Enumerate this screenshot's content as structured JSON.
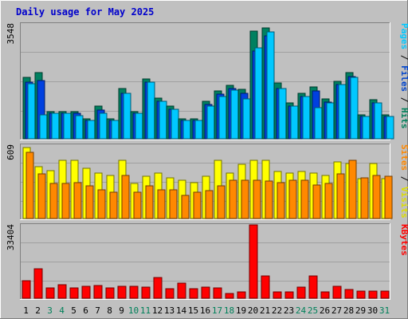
{
  "chart_data": {
    "type": "bar",
    "title": "Daily usage for May 2025",
    "days": [
      "1",
      "2",
      "3",
      "4",
      "5",
      "6",
      "7",
      "8",
      "9",
      "10",
      "11",
      "12",
      "13",
      "14",
      "15",
      "16",
      "17",
      "18",
      "19",
      "20",
      "21",
      "22",
      "23",
      "24",
      "25",
      "26",
      "27",
      "28",
      "29",
      "30",
      "31"
    ],
    "weekend_days": [
      "3",
      "4",
      "10",
      "11",
      "17",
      "18",
      "24",
      "25",
      "31"
    ],
    "panels": [
      {
        "id": "hits",
        "max_label": "3548",
        "ymax": 3548,
        "right_label_parts": [
          {
            "text": "Pages",
            "color": "#00c8ff"
          },
          {
            "text": " / ",
            "color": "#000000"
          },
          {
            "text": "Files",
            "color": "#0044cc"
          },
          {
            "text": " / ",
            "color": "#000000"
          },
          {
            "text": "Hits",
            "color": "#00805a"
          }
        ],
        "series": [
          {
            "name": "Hits",
            "color": "#008060",
            "values": [
              1900,
              2050,
              850,
              850,
              850,
              620,
              1000,
              620,
              1560,
              850,
              1850,
              1250,
              1000,
              620,
              620,
              1160,
              1470,
              1650,
              1520,
              3320,
              3430,
              1720,
              1110,
              1400,
              1590,
              1240,
              1770,
              2050,
              730,
              1200,
              750
            ]
          },
          {
            "name": "Files",
            "color": "#0040e0",
            "values": [
              1750,
              1800,
              790,
              790,
              790,
              560,
              890,
              560,
              1400,
              790,
              1750,
              1150,
              920,
              560,
              560,
              1050,
              1370,
              1560,
              1400,
              2720,
              3190,
              1560,
              1020,
              1310,
              1490,
              1130,
              1680,
              1910,
              700,
              1100,
              700
            ]
          },
          {
            "name": "Pages",
            "color": "#00c8ff",
            "values": [
              1700,
              750,
              780,
              780,
              720,
              560,
              780,
              560,
              1400,
              780,
              1750,
              1150,
              920,
              560,
              560,
              1000,
              1300,
              1500,
              1230,
              2800,
              3300,
              1550,
              1000,
              1300,
              950,
              1100,
              1680,
              1900,
              700,
              1100,
              700
            ]
          }
        ]
      },
      {
        "id": "visits",
        "max_label": "609",
        "ymax": 609,
        "right_label_parts": [
          {
            "text": "Sites",
            "color": "#ff8800"
          },
          {
            "text": " / ",
            "color": "#000000"
          },
          {
            "text": "Visits",
            "color": "#dddd00"
          }
        ],
        "series": [
          {
            "name": "Visits",
            "color": "#ffff00",
            "values": [
              590,
              430,
              400,
              480,
              480,
              420,
              380,
              360,
              480,
              290,
              350,
              380,
              340,
              315,
              300,
              350,
              480,
              380,
              450,
              480,
              480,
              390,
              380,
              390,
              380,
              360,
              470,
              460,
              330,
              460,
              330
            ]
          },
          {
            "name": "Sites",
            "color": "#ff8800",
            "values": [
              550,
              370,
              290,
              290,
              300,
              270,
              240,
              220,
              360,
              220,
              270,
              240,
              240,
              190,
              220,
              230,
              270,
              320,
              320,
              320,
              310,
              300,
              320,
              320,
              280,
              290,
              370,
              480,
              340,
              360,
              350
            ]
          }
        ]
      },
      {
        "id": "kbytes",
        "max_label": "33404",
        "ymax": 33404,
        "right_label_parts": [
          {
            "text": "KBytes",
            "color": "#ff0000"
          }
        ],
        "series": [
          {
            "name": "KBytes",
            "color": "#ff0000",
            "values": [
              7900,
              13500,
              4900,
              6000,
              4700,
              5600,
              5800,
              4700,
              5500,
              5400,
              5000,
              9500,
              4400,
              6800,
              4400,
              5000,
              4700,
              2200,
              3000,
              33404,
              10200,
              2900,
              3000,
              5000,
              10300,
              2800,
              5300,
              4000,
              3100,
              3100,
              3100
            ]
          }
        ]
      }
    ]
  }
}
